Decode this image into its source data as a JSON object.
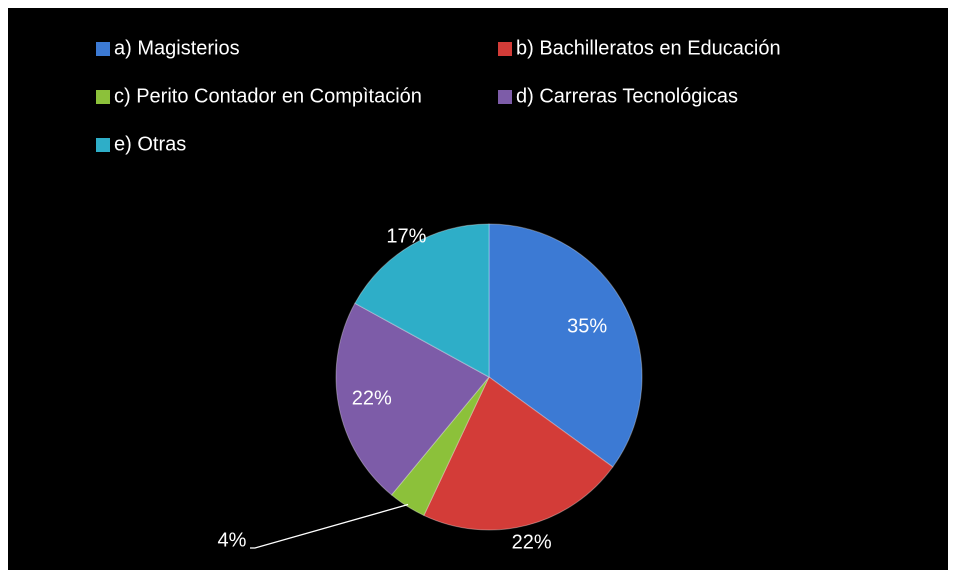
{
  "chart_data": {
    "type": "pie",
    "categories": [
      "a) Magisterios",
      "b) Bachilleratos en Educación",
      "c) Perito Contador en Compìtación",
      "d) Carreras Tecnológicas",
      "e) Otras"
    ],
    "values": [
      35,
      22,
      4,
      22,
      17
    ],
    "value_labels": [
      "35%",
      "22%",
      "4%",
      "22%",
      "17%"
    ],
    "colors": [
      "#3c7ad4",
      "#d33c38",
      "#8cc13a",
      "#7d5ca8",
      "#2eaec8"
    ],
    "legend": "top"
  }
}
